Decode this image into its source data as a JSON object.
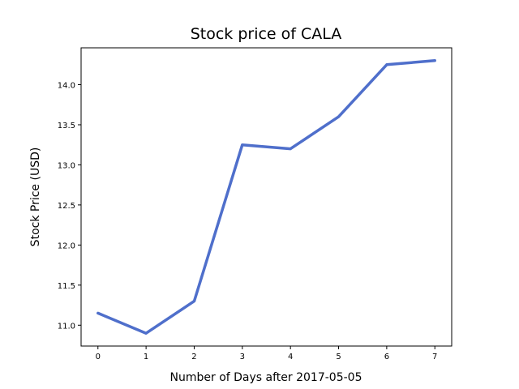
{
  "chart_data": {
    "type": "line",
    "title": "Stock price of CALA",
    "xlabel": "Number of Days after 2017-05-05",
    "ylabel": "Stock Price (USD)",
    "x": [
      0,
      1,
      2,
      3,
      4,
      5,
      6,
      7
    ],
    "series": [
      {
        "values": [
          11.15,
          10.9,
          11.3,
          13.25,
          13.2,
          13.6,
          14.25,
          14.3
        ]
      }
    ],
    "xlim": [
      -0.35,
      7.35
    ],
    "ylim": [
      10.74,
      14.46
    ],
    "xticks": [
      "0",
      "1",
      "2",
      "3",
      "4",
      "5",
      "6",
      "7"
    ],
    "yticks": [
      "11.0",
      "11.5",
      "12.0",
      "12.5",
      "13.0",
      "13.5",
      "14.0"
    ],
    "grid": false,
    "line_color": "#4f6fcb"
  }
}
